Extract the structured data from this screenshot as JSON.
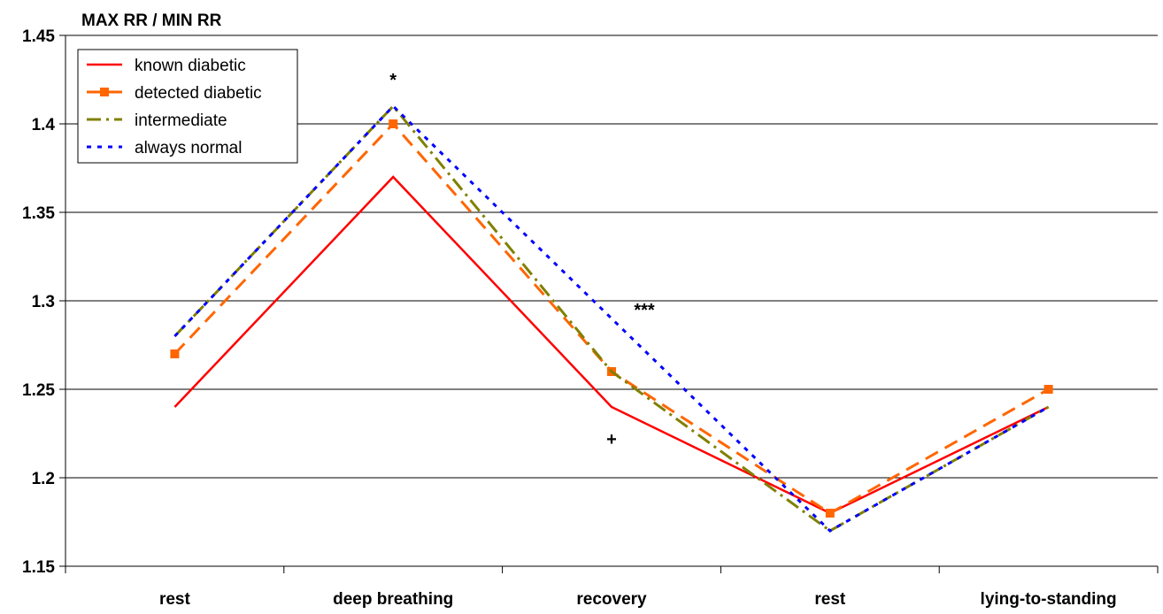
{
  "chart_data": {
    "type": "line",
    "title": "MAX RR / MIN RR",
    "xlabel": "",
    "ylabel": "",
    "categories": [
      "rest",
      "deep breathing",
      "recovery",
      "rest",
      "lying-to-standing"
    ],
    "ylim": [
      1.15,
      1.45
    ],
    "yticks": [
      "1.15",
      "1.2",
      "1.25",
      "1.3",
      "1.35",
      "1.4",
      "1.45"
    ],
    "grid": "horizontal",
    "legend_position": "top-left",
    "series": [
      {
        "name": "known diabetic",
        "values": [
          1.24,
          1.37,
          1.24,
          1.18,
          1.24
        ],
        "color": "#ff0000",
        "style": "solid",
        "marker": "none"
      },
      {
        "name": "detected diabetic",
        "values": [
          1.27,
          1.4,
          1.26,
          1.18,
          1.25
        ],
        "color": "#ff6600",
        "style": "long-dash",
        "marker": "square"
      },
      {
        "name": "intermediate",
        "values": [
          1.28,
          1.41,
          1.26,
          1.17,
          1.24
        ],
        "color": "#808000",
        "style": "dash-dot",
        "marker": "none"
      },
      {
        "name": "always normal",
        "values": [
          1.28,
          1.41,
          1.29,
          1.17,
          1.24
        ],
        "color": "#0000ff",
        "style": "dotted",
        "marker": "none"
      }
    ],
    "annotations": [
      {
        "text": "*",
        "category_index": 1,
        "y": 1.425
      },
      {
        "text": "***",
        "category_index": 2.15,
        "y": 1.295
      },
      {
        "text": "+",
        "category_index": 2.0,
        "y": 1.222
      }
    ]
  }
}
